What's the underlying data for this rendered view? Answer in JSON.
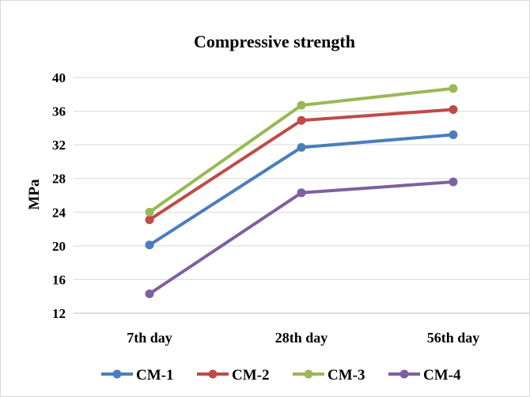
{
  "chart_data": {
    "type": "line",
    "title": "Compressive strength",
    "xlabel": "",
    "ylabel": "MPa",
    "categories": [
      "7th day",
      "28th day",
      "56th day"
    ],
    "ylim": [
      12,
      40
    ],
    "yticks": [
      12,
      16,
      20,
      24,
      28,
      32,
      36,
      40
    ],
    "grid": true,
    "legend_position": "bottom",
    "series": [
      {
        "name": "CM-1",
        "values": [
          20.1,
          31.7,
          33.2
        ],
        "color": "#4A7EBB"
      },
      {
        "name": "CM-2",
        "values": [
          23.1,
          34.9,
          36.2
        ],
        "color": "#BE4B48"
      },
      {
        "name": "CM-3",
        "values": [
          24.0,
          36.7,
          38.7
        ],
        "color": "#98B954"
      },
      {
        "name": "CM-4",
        "values": [
          14.3,
          26.3,
          27.6
        ],
        "color": "#7D60A0"
      }
    ]
  }
}
